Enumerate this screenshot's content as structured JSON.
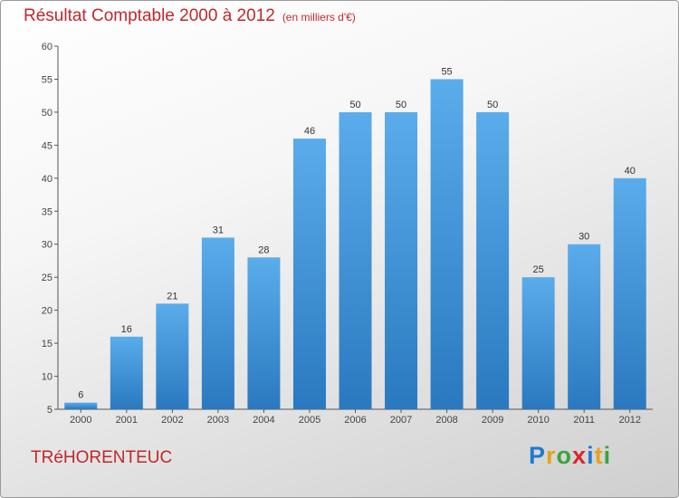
{
  "title": "Résultat Comptable 2000 à 2012",
  "subtitle": "(en milliers d'€)",
  "commune": "TRéHORENTEUC",
  "logo": {
    "letters": [
      "P",
      "r",
      "o",
      "x",
      "i",
      "t",
      "i"
    ],
    "colors": [
      "#1f7ad1",
      "#e8a21a",
      "#3aa53a",
      "#d9262b",
      "#1f7ad1",
      "#e8a21a",
      "#3aa53a"
    ]
  },
  "colors": {
    "bar_top": "#5aaceb",
    "bar_bottom": "#2a79c0",
    "title": "#c0282a"
  },
  "chart_data": {
    "type": "bar",
    "title": "Résultat Comptable 2000 à 2012",
    "xlabel": "",
    "ylabel": "",
    "categories": [
      "2000",
      "2001",
      "2002",
      "2003",
      "2004",
      "2005",
      "2006",
      "2007",
      "2008",
      "2009",
      "2010",
      "2011",
      "2012"
    ],
    "values": [
      6,
      16,
      21,
      31,
      28,
      46,
      50,
      50,
      55,
      50,
      25,
      30,
      40
    ],
    "ylim": [
      5,
      60
    ],
    "yticks": [
      5,
      10,
      15,
      20,
      25,
      30,
      35,
      40,
      45,
      50,
      55,
      60
    ],
    "grid": false
  }
}
